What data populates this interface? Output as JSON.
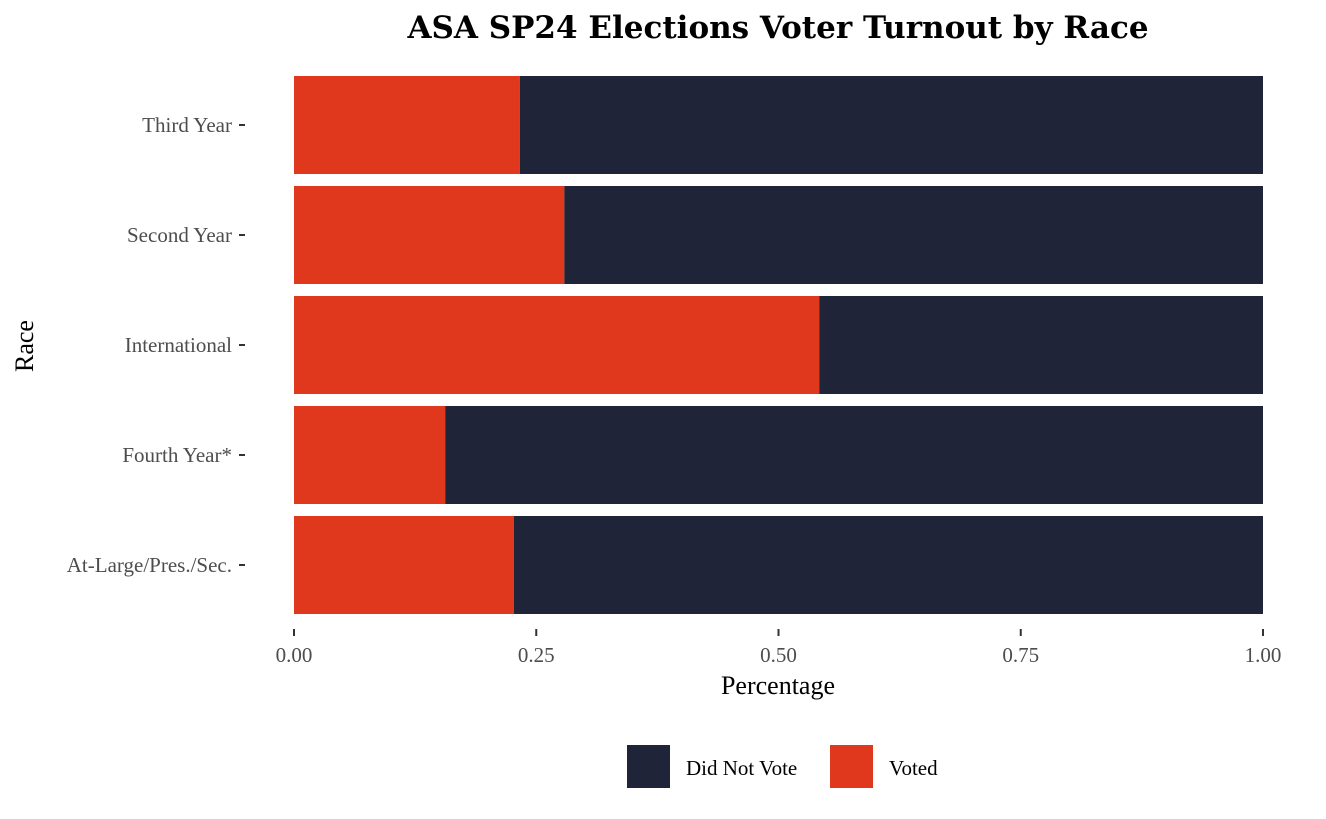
{
  "chart_data": {
    "type": "bar",
    "orientation": "horizontal",
    "stacked": true,
    "title": "ASA SP24 Elections Voter Turnout by Race",
    "xlabel": "Percentage",
    "ylabel": "Race",
    "categories": [
      "Third Year",
      "Second Year",
      "International",
      "Fourth Year*",
      "At-Large/Pres./Sec."
    ],
    "series": [
      {
        "name": "Voted",
        "color": "#df381c",
        "values": [
          0.233,
          0.279,
          0.542,
          0.156,
          0.227
        ]
      },
      {
        "name": "Did Not Vote",
        "color": "#1f2438",
        "values": [
          0.767,
          0.721,
          0.458,
          0.844,
          0.773
        ]
      }
    ],
    "xlim": [
      0,
      1
    ],
    "xticks": [
      "0.00",
      "0.25",
      "0.50",
      "0.75",
      "1.00"
    ],
    "legend": {
      "position": "bottom",
      "entries": [
        "Did Not Vote",
        "Voted"
      ]
    },
    "grid": false
  }
}
